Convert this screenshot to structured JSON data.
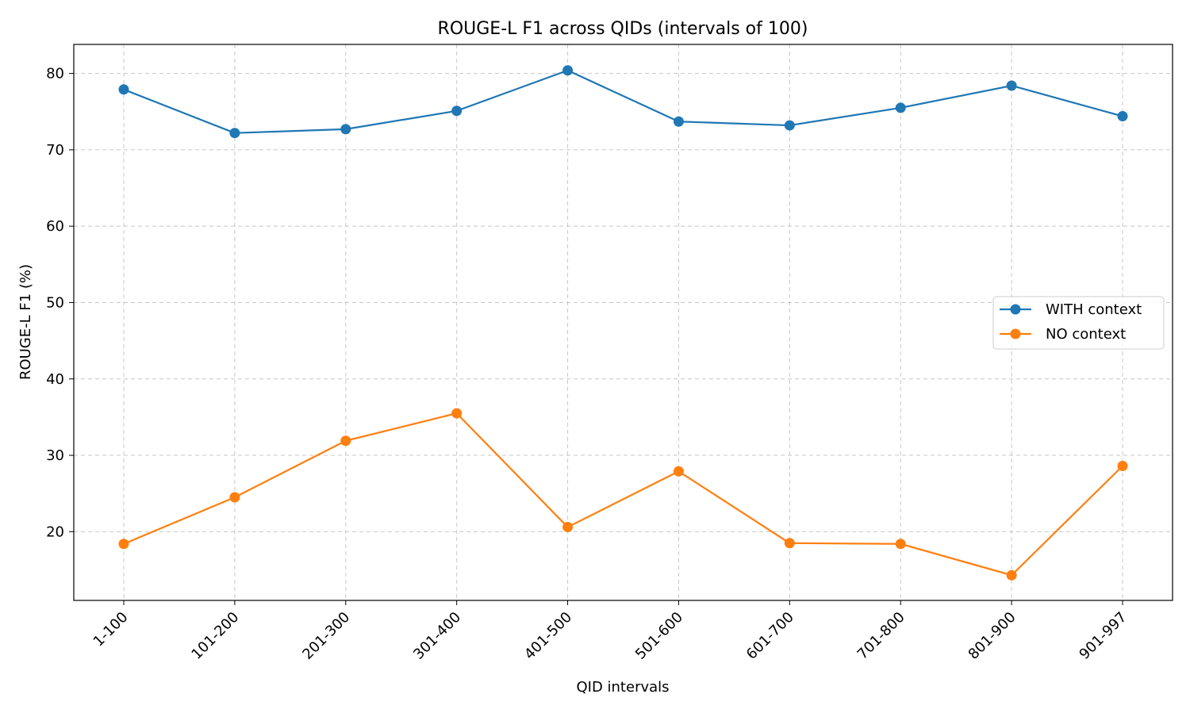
{
  "chart_data": {
    "type": "line",
    "title": "ROUGE-L F1 across QIDs (intervals of 100)",
    "xlabel": "QID intervals",
    "ylabel": "ROUGE-L F1 (%)",
    "categories": [
      "1-100",
      "101-200",
      "201-300",
      "301-400",
      "401-500",
      "501-600",
      "601-700",
      "701-800",
      "801-900",
      "901-997"
    ],
    "ylim": [
      11,
      83.8
    ],
    "yticks": [
      20,
      30,
      40,
      50,
      60,
      70,
      80
    ],
    "grid": true,
    "legend_position": "center-right",
    "series": [
      {
        "name": "WITH context",
        "color": "#1f77b4",
        "marker": "circle",
        "values": [
          77.9,
          72.2,
          72.7,
          75.1,
          80.4,
          73.7,
          73.2,
          75.5,
          78.4,
          74.4
        ]
      },
      {
        "name": "NO context",
        "color": "#ff7f0e",
        "marker": "circle",
        "values": [
          18.4,
          24.5,
          31.9,
          35.5,
          20.6,
          27.9,
          18.5,
          18.4,
          14.3,
          28.6
        ]
      }
    ]
  }
}
